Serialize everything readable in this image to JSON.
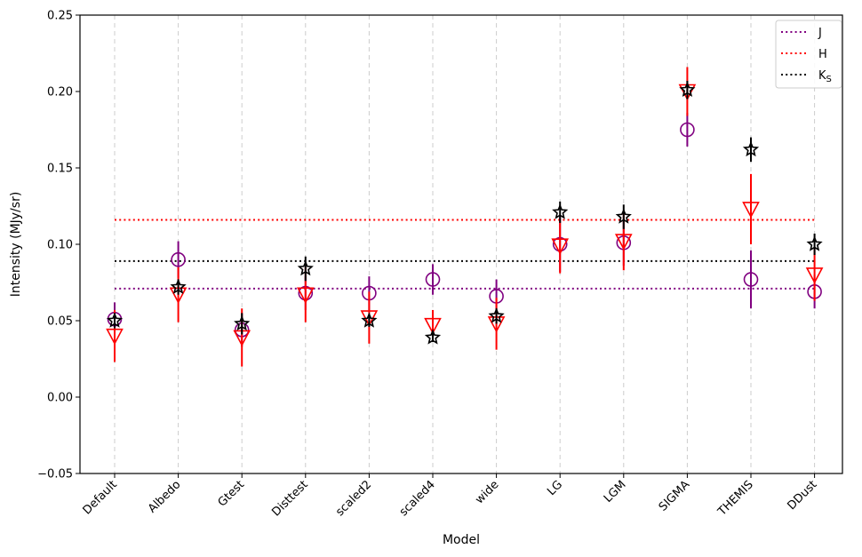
{
  "chart_data": {
    "type": "scatter",
    "title": "",
    "xlabel": "Model",
    "ylabel": "Intensity (MJy/sr)",
    "ylim": [
      -0.05,
      0.25
    ],
    "yticks": [
      -0.05,
      0.0,
      0.05,
      0.1,
      0.15,
      0.2,
      0.25
    ],
    "ytick_labels": [
      "−0.05",
      "0.00",
      "0.05",
      "0.10",
      "0.15",
      "0.20",
      "0.25"
    ],
    "categories": [
      "Default",
      "Albedo",
      "Gtest",
      "Disttest",
      "scaled2",
      "scaled4",
      "wide",
      "LG",
      "LGM",
      "SIGMA",
      "THEMIS",
      "DDust"
    ],
    "grid": "vertical dashed",
    "legend_position": "top-right",
    "series": [
      {
        "name": "J",
        "label_main": "J",
        "label_sub": "",
        "color": "#800080",
        "marker": "circle",
        "values": [
          0.051,
          0.09,
          0.044,
          0.068,
          0.068,
          0.077,
          0.066,
          0.1,
          0.101,
          0.175,
          0.077,
          0.069
        ],
        "errors": [
          0.011,
          0.012,
          0.011,
          0.011,
          0.011,
          0.01,
          0.011,
          0.018,
          0.015,
          0.011,
          0.019,
          0.011
        ],
        "reference_line": 0.071
      },
      {
        "name": "H",
        "label_main": "H",
        "label_sub": "",
        "color": "#ff0000",
        "marker": "triangle-down",
        "values": [
          0.04,
          0.067,
          0.039,
          0.067,
          0.052,
          0.047,
          0.048,
          0.099,
          0.102,
          0.2,
          0.123,
          0.08
        ],
        "errors": [
          0.017,
          0.018,
          0.019,
          0.018,
          0.017,
          0.01,
          0.017,
          0.018,
          0.019,
          0.016,
          0.023,
          0.017
        ],
        "reference_line": 0.116
      },
      {
        "name": "Ks",
        "label_main": "K",
        "label_sub": "S",
        "color": "#000000",
        "marker": "star",
        "values": [
          0.05,
          0.072,
          0.048,
          0.084,
          0.05,
          0.039,
          0.053,
          0.121,
          0.118,
          0.201,
          0.162,
          0.1
        ],
        "errors": [
          0.005,
          0.005,
          0.007,
          0.008,
          0.004,
          0.003,
          0.005,
          0.007,
          0.008,
          0.006,
          0.008,
          0.007
        ],
        "reference_line": 0.089
      }
    ]
  }
}
